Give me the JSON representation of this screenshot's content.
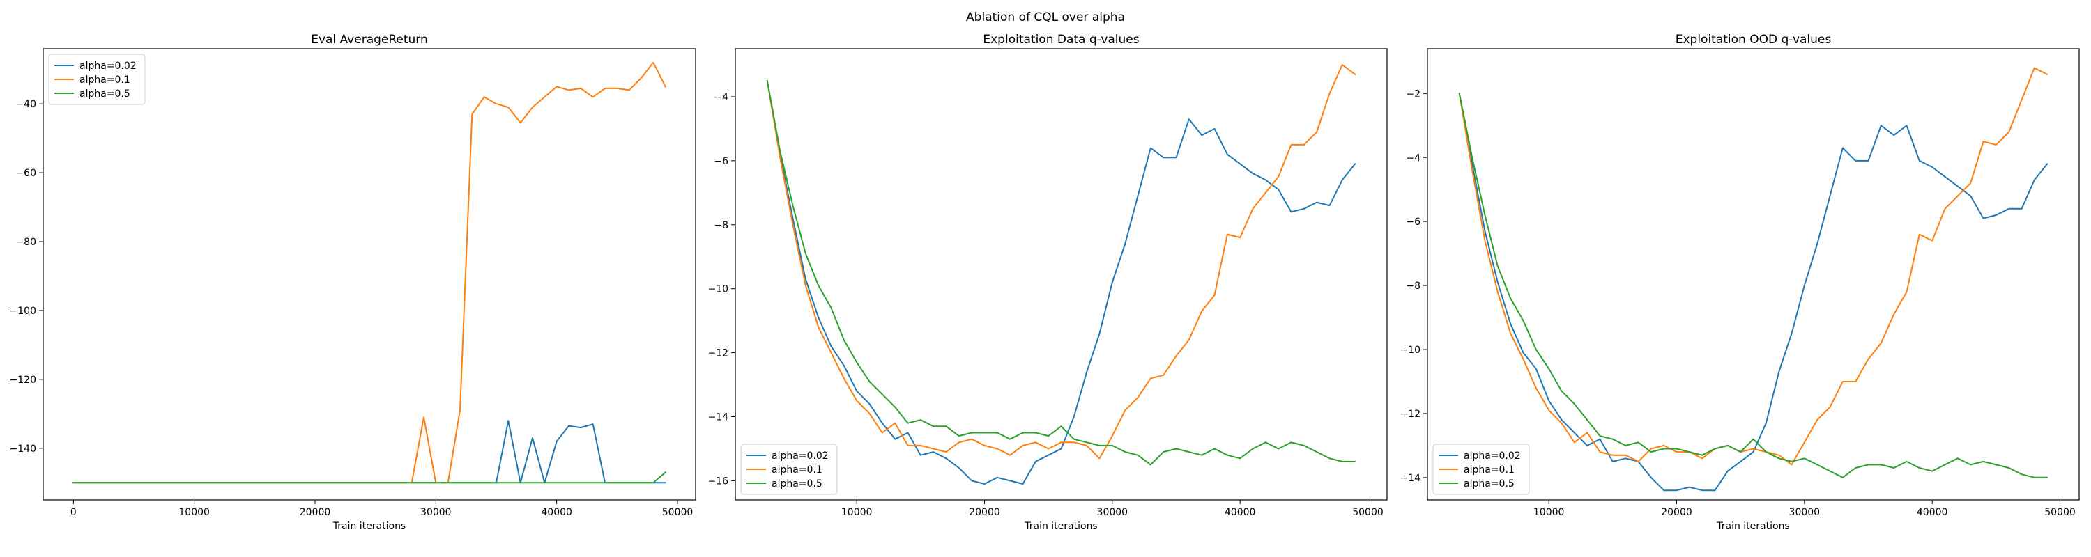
{
  "figure": {
    "suptitle": "Ablation of CQL over alpha"
  },
  "chart_data": [
    {
      "type": "line",
      "title": "Eval AverageReturn",
      "xlabel": "Train iterations",
      "ylabel": "",
      "xlim": [
        -2500,
        51500
      ],
      "ylim": [
        -155,
        -24
      ],
      "xticks": [
        0,
        10000,
        20000,
        30000,
        40000,
        50000
      ],
      "yticks": [
        -140,
        -120,
        -100,
        -80,
        -60,
        -40
      ],
      "legend": "upper left",
      "series": [
        {
          "name": "alpha=0.02",
          "color": "#1f77b4",
          "x": [
            0,
            34000,
            35000,
            36000,
            37000,
            38000,
            39000,
            40000,
            41000,
            42000,
            43000,
            44000,
            49000
          ],
          "y": [
            -150,
            -150,
            -150,
            -132,
            -150,
            -137,
            -150,
            -138,
            -133.5,
            -134,
            -133,
            -150,
            -150
          ]
        },
        {
          "name": "alpha=0.1",
          "color": "#ff7f0e",
          "x": [
            0,
            28000,
            29000,
            30000,
            31000,
            32000,
            33000,
            34000,
            35000,
            36000,
            37000,
            38000,
            39000,
            40000,
            41000,
            42000,
            43000,
            44000,
            45000,
            46000,
            47000,
            48000,
            49000
          ],
          "y": [
            -150,
            -150,
            -131,
            -150,
            -150,
            -129,
            -43,
            -38,
            -40,
            -41,
            -45.5,
            -41,
            -38,
            -35,
            -36,
            -35.5,
            -38,
            -35.5,
            -35.5,
            -36,
            -32.5,
            -28,
            -35
          ]
        },
        {
          "name": "alpha=0.5",
          "color": "#2ca02c",
          "x": [
            0,
            48000,
            49000
          ],
          "y": [
            -150,
            -150,
            -147
          ]
        }
      ]
    },
    {
      "type": "line",
      "title": "Exploitation Data q-values",
      "xlabel": "Train iterations",
      "ylabel": "",
      "xlim": [
        500,
        51500
      ],
      "ylim": [
        -16.6,
        -2.5
      ],
      "xticks": [
        10000,
        20000,
        30000,
        40000,
        50000
      ],
      "yticks": [
        -16,
        -14,
        -12,
        -10,
        -8,
        -6,
        -4
      ],
      "legend": "lower left",
      "series": [
        {
          "name": "alpha=0.02",
          "color": "#1f77b4",
          "x": [
            3000,
            4000,
            5000,
            6000,
            7000,
            8000,
            9000,
            10000,
            11000,
            12000,
            13000,
            14000,
            15000,
            16000,
            17000,
            18000,
            19000,
            20000,
            21000,
            22000,
            23000,
            24000,
            25000,
            26000,
            27000,
            28000,
            29000,
            30000,
            31000,
            32000,
            33000,
            34000,
            35000,
            36000,
            37000,
            38000,
            39000,
            40000,
            41000,
            42000,
            43000,
            44000,
            45000,
            46000,
            47000,
            48000,
            49000
          ],
          "y": [
            -3.5,
            -5.8,
            -7.8,
            -9.7,
            -10.9,
            -11.8,
            -12.4,
            -13.2,
            -13.6,
            -14.2,
            -14.7,
            -14.5,
            -15.2,
            -15.1,
            -15.3,
            -15.6,
            -16.0,
            -16.1,
            -15.9,
            -16.0,
            -16.1,
            -15.4,
            -15.2,
            -15.0,
            -14.0,
            -12.6,
            -11.4,
            -9.8,
            -8.6,
            -7.1,
            -5.6,
            -5.9,
            -5.9,
            -4.7,
            -5.2,
            -5.0,
            -5.8,
            -6.1,
            -6.4,
            -6.6,
            -6.9,
            -7.6,
            -7.5,
            -7.3,
            -7.4,
            -6.6,
            -6.1
          ]
        },
        {
          "name": "alpha=0.1",
          "color": "#ff7f0e",
          "x": [
            3000,
            4000,
            5000,
            6000,
            7000,
            8000,
            9000,
            10000,
            11000,
            12000,
            13000,
            14000,
            15000,
            16000,
            17000,
            18000,
            19000,
            20000,
            21000,
            22000,
            23000,
            24000,
            25000,
            26000,
            27000,
            28000,
            29000,
            30000,
            31000,
            32000,
            33000,
            34000,
            35000,
            36000,
            37000,
            38000,
            39000,
            40000,
            41000,
            42000,
            43000,
            44000,
            45000,
            46000,
            47000,
            48000,
            49000
          ],
          "y": [
            -3.5,
            -5.9,
            -8.0,
            -9.9,
            -11.2,
            -12.0,
            -12.8,
            -13.5,
            -13.9,
            -14.5,
            -14.2,
            -14.9,
            -14.9,
            -15.0,
            -15.1,
            -14.8,
            -14.7,
            -14.9,
            -15.0,
            -15.2,
            -14.9,
            -14.8,
            -15.0,
            -14.8,
            -14.8,
            -14.9,
            -15.3,
            -14.6,
            -13.8,
            -13.4,
            -12.8,
            -12.7,
            -12.1,
            -11.6,
            -10.7,
            -10.2,
            -8.3,
            -8.4,
            -7.5,
            -7.0,
            -6.5,
            -5.5,
            -5.5,
            -5.1,
            -3.9,
            -3.0,
            -3.3
          ]
        },
        {
          "name": "alpha=0.5",
          "color": "#2ca02c",
          "x": [
            3000,
            4000,
            5000,
            6000,
            7000,
            8000,
            9000,
            10000,
            11000,
            12000,
            13000,
            14000,
            15000,
            16000,
            17000,
            18000,
            19000,
            20000,
            21000,
            22000,
            23000,
            24000,
            25000,
            26000,
            27000,
            28000,
            29000,
            30000,
            31000,
            32000,
            33000,
            34000,
            35000,
            36000,
            37000,
            38000,
            39000,
            40000,
            41000,
            42000,
            43000,
            44000,
            45000,
            46000,
            47000,
            48000,
            49000
          ],
          "y": [
            -3.5,
            -5.7,
            -7.4,
            -8.9,
            -9.9,
            -10.6,
            -11.6,
            -12.3,
            -12.9,
            -13.3,
            -13.7,
            -14.2,
            -14.1,
            -14.3,
            -14.3,
            -14.6,
            -14.5,
            -14.5,
            -14.5,
            -14.7,
            -14.5,
            -14.5,
            -14.6,
            -14.3,
            -14.7,
            -14.8,
            -14.9,
            -14.9,
            -15.1,
            -15.2,
            -15.5,
            -15.1,
            -15.0,
            -15.1,
            -15.2,
            -15.0,
            -15.2,
            -15.3,
            -15.0,
            -14.8,
            -15.0,
            -14.8,
            -14.9,
            -15.1,
            -15.3,
            -15.4,
            -15.4
          ]
        }
      ]
    },
    {
      "type": "line",
      "title": "Exploitation OOD q-values",
      "xlabel": "Train iterations",
      "ylabel": "",
      "xlim": [
        500,
        51500
      ],
      "ylim": [
        -14.7,
        -0.6
      ],
      "xticks": [
        10000,
        20000,
        30000,
        40000,
        50000
      ],
      "yticks": [
        -14,
        -12,
        -10,
        -8,
        -6,
        -4,
        -2
      ],
      "legend": "lower left",
      "series": [
        {
          "name": "alpha=0.02",
          "color": "#1f77b4",
          "x": [
            3000,
            4000,
            5000,
            6000,
            7000,
            8000,
            9000,
            10000,
            11000,
            12000,
            13000,
            14000,
            15000,
            16000,
            17000,
            18000,
            19000,
            20000,
            21000,
            22000,
            23000,
            24000,
            25000,
            26000,
            27000,
            28000,
            29000,
            30000,
            31000,
            32000,
            33000,
            34000,
            35000,
            36000,
            37000,
            38000,
            39000,
            40000,
            41000,
            42000,
            43000,
            44000,
            45000,
            46000,
            47000,
            48000,
            49000
          ],
          "y": [
            -2.0,
            -4.2,
            -6.3,
            -7.9,
            -9.2,
            -10.1,
            -10.6,
            -11.6,
            -12.2,
            -12.6,
            -13.0,
            -12.8,
            -13.5,
            -13.4,
            -13.5,
            -14.0,
            -14.4,
            -14.4,
            -14.3,
            -14.4,
            -14.4,
            -13.8,
            -13.5,
            -13.2,
            -12.3,
            -10.7,
            -9.5,
            -8.0,
            -6.7,
            -5.2,
            -3.7,
            -4.1,
            -4.1,
            -3.0,
            -3.3,
            -3.0,
            -4.1,
            -4.3,
            -4.6,
            -4.9,
            -5.2,
            -5.9,
            -5.8,
            -5.6,
            -5.6,
            -4.7,
            -4.2
          ]
        },
        {
          "name": "alpha=0.1",
          "color": "#ff7f0e",
          "x": [
            3000,
            4000,
            5000,
            6000,
            7000,
            8000,
            9000,
            10000,
            11000,
            12000,
            13000,
            14000,
            15000,
            16000,
            17000,
            18000,
            19000,
            20000,
            21000,
            22000,
            23000,
            24000,
            25000,
            26000,
            27000,
            28000,
            29000,
            30000,
            31000,
            32000,
            33000,
            34000,
            35000,
            36000,
            37000,
            38000,
            39000,
            40000,
            41000,
            42000,
            43000,
            44000,
            45000,
            46000,
            47000,
            48000,
            49000
          ],
          "y": [
            -2.0,
            -4.4,
            -6.6,
            -8.2,
            -9.5,
            -10.3,
            -11.2,
            -11.9,
            -12.3,
            -12.9,
            -12.6,
            -13.2,
            -13.3,
            -13.3,
            -13.5,
            -13.1,
            -13.0,
            -13.2,
            -13.2,
            -13.4,
            -13.1,
            -13.0,
            -13.2,
            -13.1,
            -13.2,
            -13.3,
            -13.6,
            -12.9,
            -12.2,
            -11.8,
            -11.0,
            -11.0,
            -10.3,
            -9.8,
            -8.9,
            -8.2,
            -6.4,
            -6.6,
            -5.6,
            -5.2,
            -4.8,
            -3.5,
            -3.6,
            -3.2,
            -2.2,
            -1.2,
            -1.4
          ]
        },
        {
          "name": "alpha=0.5",
          "color": "#2ca02c",
          "x": [
            3000,
            4000,
            5000,
            6000,
            7000,
            8000,
            9000,
            10000,
            11000,
            12000,
            13000,
            14000,
            15000,
            16000,
            17000,
            18000,
            19000,
            20000,
            21000,
            22000,
            23000,
            24000,
            25000,
            26000,
            27000,
            28000,
            29000,
            30000,
            31000,
            32000,
            33000,
            34000,
            35000,
            36000,
            37000,
            38000,
            39000,
            40000,
            41000,
            42000,
            43000,
            44000,
            45000,
            46000,
            47000,
            48000,
            49000
          ],
          "y": [
            -2.0,
            -4.0,
            -5.8,
            -7.4,
            -8.4,
            -9.1,
            -10.0,
            -10.6,
            -11.3,
            -11.7,
            -12.2,
            -12.7,
            -12.8,
            -13.0,
            -12.9,
            -13.2,
            -13.1,
            -13.1,
            -13.2,
            -13.3,
            -13.1,
            -13.0,
            -13.2,
            -12.8,
            -13.2,
            -13.4,
            -13.5,
            -13.4,
            -13.6,
            -13.8,
            -14.0,
            -13.7,
            -13.6,
            -13.6,
            -13.7,
            -13.5,
            -13.7,
            -13.8,
            -13.6,
            -13.4,
            -13.6,
            -13.5,
            -13.6,
            -13.7,
            -13.9,
            -14.0,
            -14.0
          ]
        }
      ]
    }
  ]
}
